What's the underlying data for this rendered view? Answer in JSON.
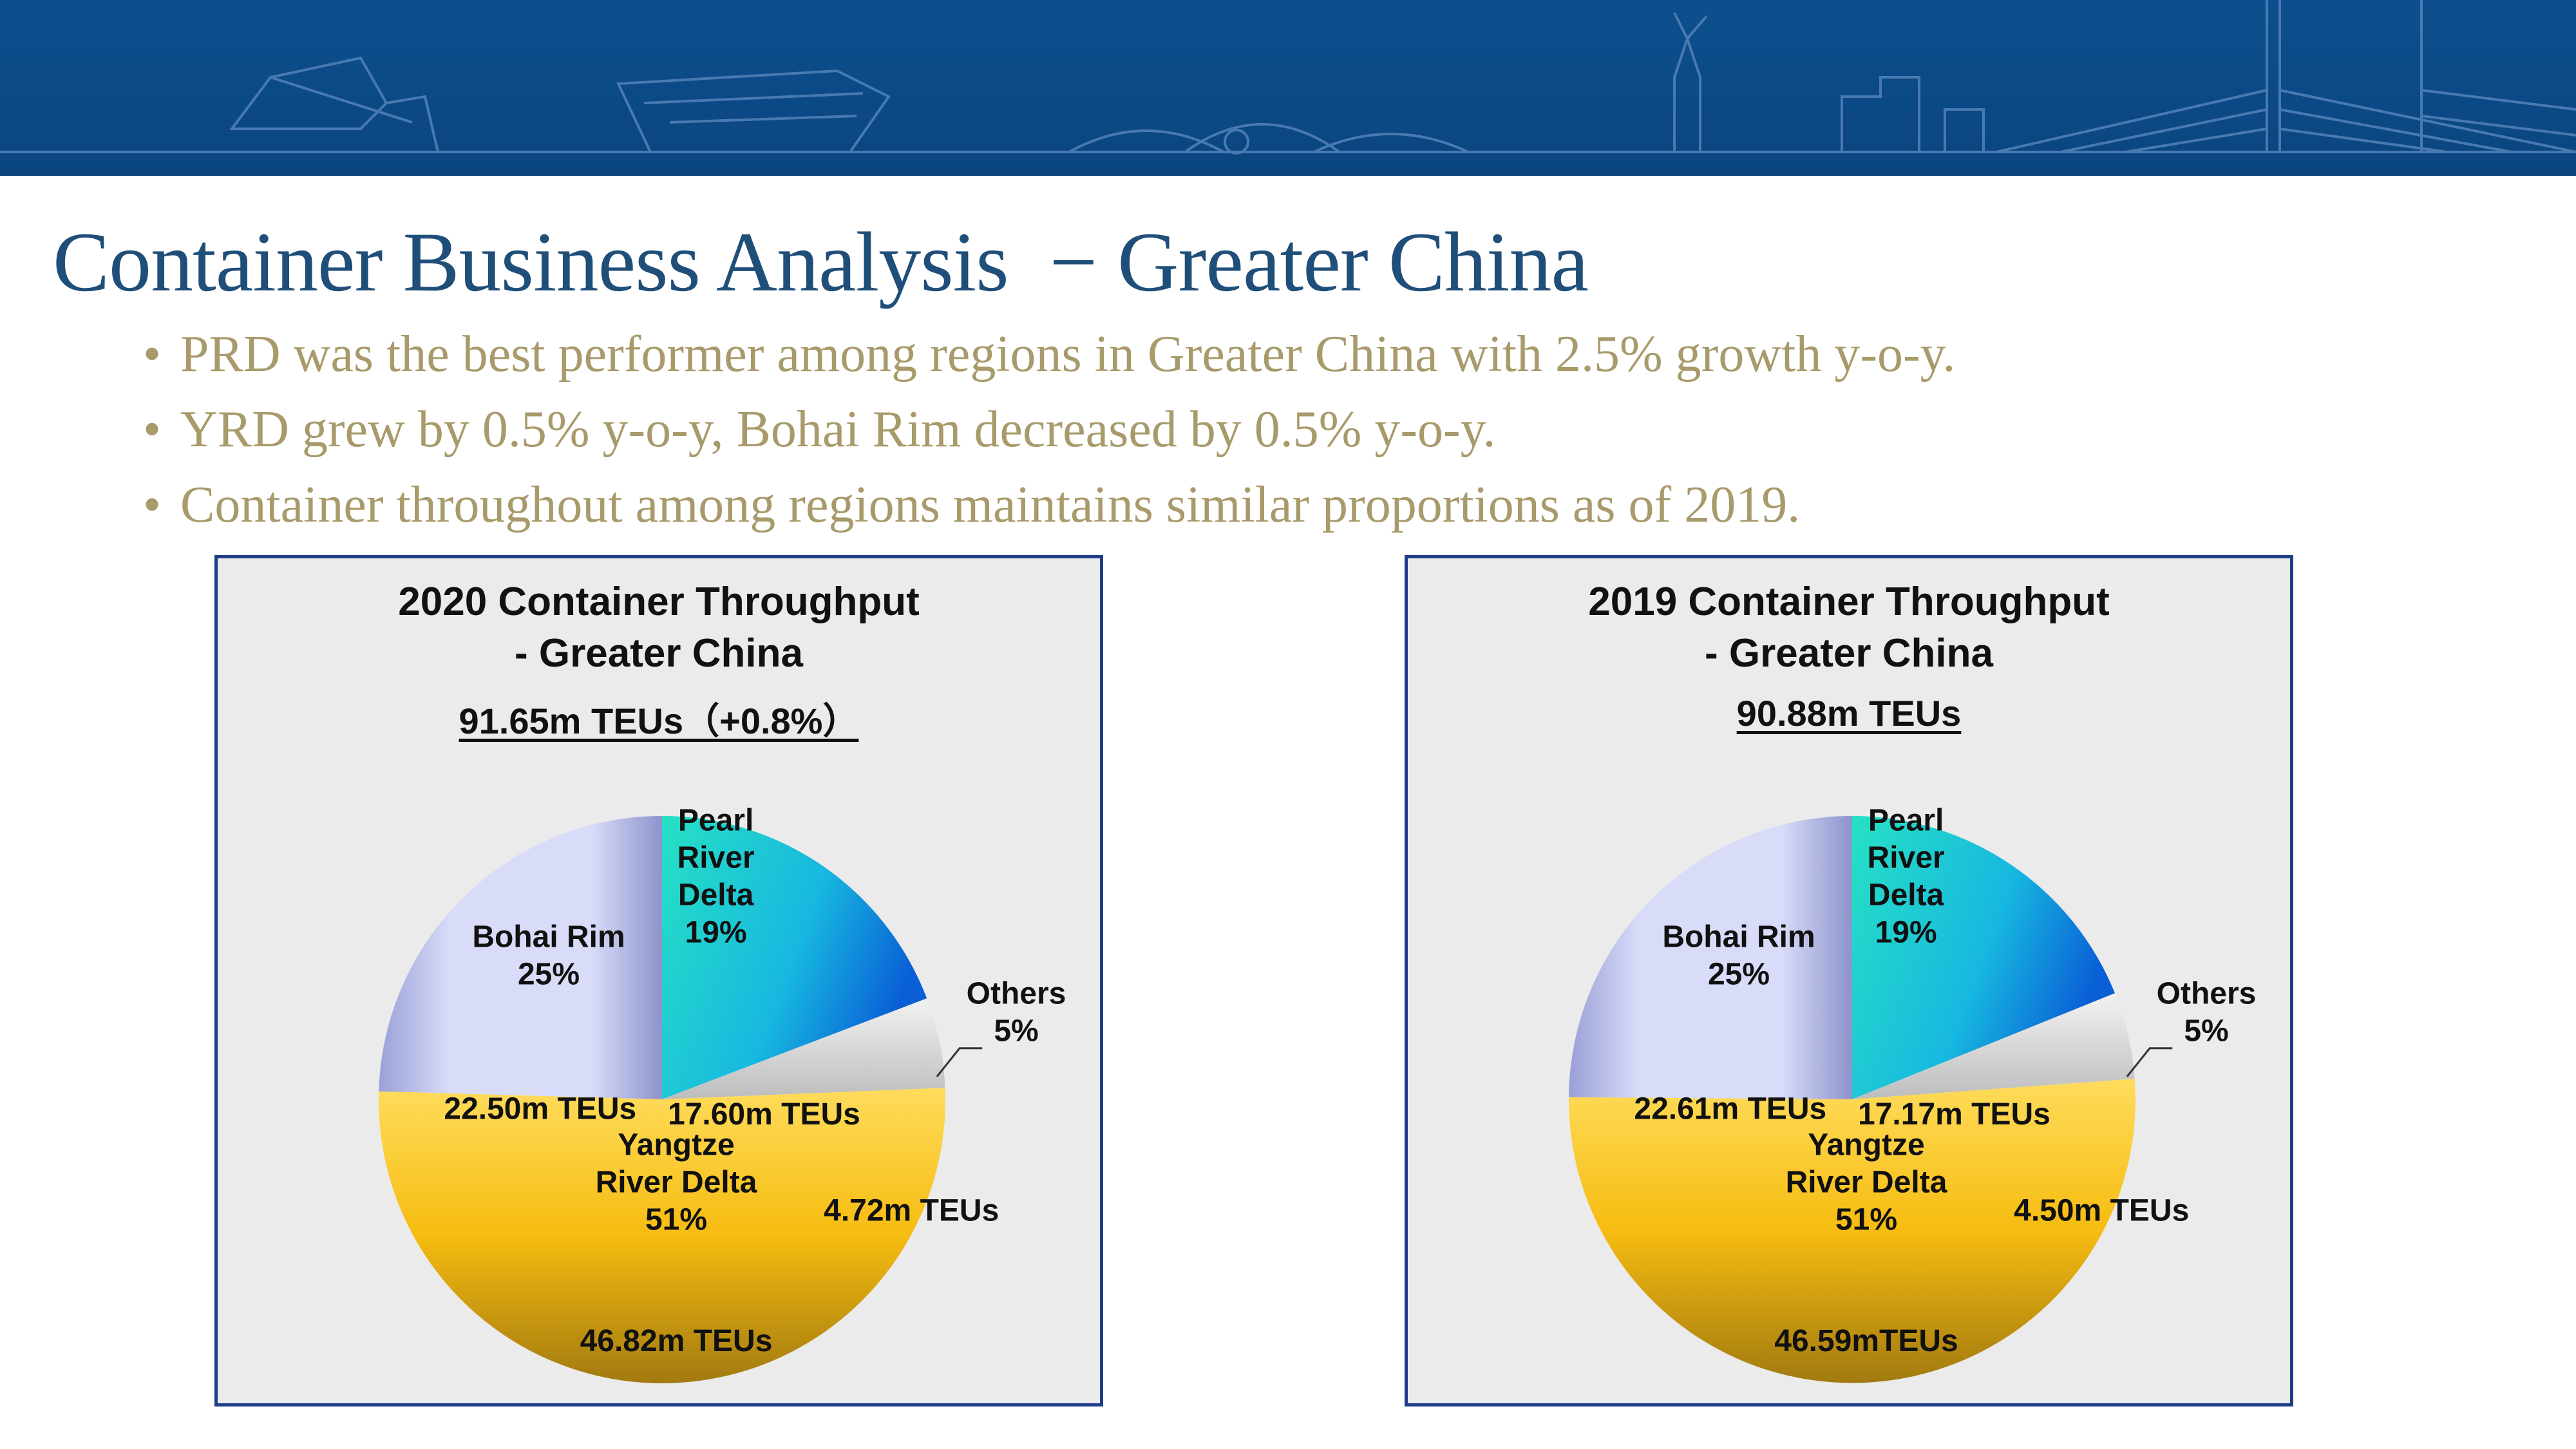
{
  "slide": {
    "title": "Container Business Analysis  − Greater China",
    "bullet_marker": "•",
    "bullets": [
      "PRD was the best performer among regions in Greater China with 2.5% growth y-o-y.",
      "YRD grew by 0.5% y-o-y, Bohai Rim decreased by 0.5% y-o-y.",
      "Container throughout among regions maintains similar proportions as of 2019."
    ],
    "colors": {
      "banner": "#0b4a86",
      "title": "#1f4e79",
      "bullets": "#a89a6a",
      "panel_border": "#1f3c88"
    }
  },
  "chart_data": [
    {
      "type": "pie",
      "title": "2020 Container Throughput",
      "title_line2": "- Greater China",
      "total_label": "91.65m TEUs（+0.8%）",
      "unit": "m TEUs",
      "slices": [
        {
          "name": "Pearl River Delta",
          "name_lines": [
            "Pearl",
            "River",
            "Delta"
          ],
          "percent": 19,
          "percent_label": "19%",
          "value": 17.6,
          "value_label": "17.60m TEUs",
          "color": "#1ec8d8"
        },
        {
          "name": "Others",
          "name_lines": [
            "Others"
          ],
          "percent": 5,
          "percent_label": "5%",
          "value": 4.72,
          "value_label": "4.72m TEUs",
          "color": "#d9d9d9"
        },
        {
          "name": "Yangtze River Delta",
          "name_lines": [
            "Yangtze",
            "River Delta"
          ],
          "percent": 51,
          "percent_label": "51%",
          "value": 46.82,
          "value_label": "46.82m TEUs",
          "color": "#f5b800"
        },
        {
          "name": "Bohai Rim",
          "name_lines": [
            "Bohai Rim"
          ],
          "percent": 25,
          "percent_label": "25%",
          "value": 22.5,
          "value_label": "22.50m TEUs",
          "color": "#cdd3f5"
        }
      ]
    },
    {
      "type": "pie",
      "title": "2019 Container Throughput",
      "title_line2": "- Greater China",
      "total_label": "90.88m TEUs",
      "unit": "m TEUs",
      "slices": [
        {
          "name": "Pearl River Delta",
          "name_lines": [
            "Pearl",
            "River",
            "Delta"
          ],
          "percent": 19,
          "percent_label": "19%",
          "value": 17.17,
          "value_label": "17.17m TEUs",
          "color": "#1ec8d8"
        },
        {
          "name": "Others",
          "name_lines": [
            "Others"
          ],
          "percent": 5,
          "percent_label": "5%",
          "value": 4.5,
          "value_label": "4.50m TEUs",
          "color": "#d9d9d9"
        },
        {
          "name": "Yangtze River Delta",
          "name_lines": [
            "Yangtze",
            "River Delta"
          ],
          "percent": 51,
          "percent_label": "51%",
          "value": 46.59,
          "value_label": "46.59mTEUs",
          "color": "#f5b800"
        },
        {
          "name": "Bohai Rim",
          "name_lines": [
            "Bohai Rim"
          ],
          "percent": 25,
          "percent_label": "25%",
          "value": 22.61,
          "value_label": "22.61m TEUs",
          "color": "#cdd3f5"
        }
      ]
    }
  ]
}
